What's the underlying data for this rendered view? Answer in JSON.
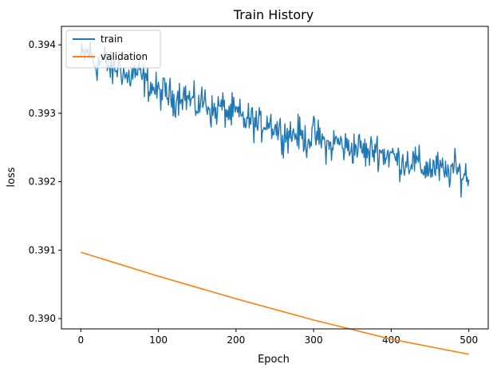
{
  "chart_data": {
    "type": "line",
    "title": "Train History",
    "xlabel": "Epoch",
    "ylabel": "loss",
    "xlim": [
      -25,
      525
    ],
    "ylim": [
      0.38985,
      0.39427
    ],
    "xticks": [
      0,
      100,
      200,
      300,
      400,
      500
    ],
    "xtick_labels": [
      "0",
      "100",
      "200",
      "300",
      "400",
      "500"
    ],
    "yticks": [
      0.39,
      0.391,
      0.392,
      0.393,
      0.394
    ],
    "ytick_labels": [
      "0.390",
      "0.391",
      "0.392",
      "0.393",
      "0.394"
    ],
    "grid": false,
    "legend_position": "upper-left",
    "series": [
      {
        "name": "train",
        "color": "#1f77b4",
        "x": [
          0,
          10,
          20,
          30,
          40,
          50,
          60,
          70,
          80,
          90,
          100,
          110,
          120,
          130,
          140,
          150,
          160,
          170,
          180,
          190,
          200,
          210,
          220,
          230,
          240,
          250,
          260,
          270,
          280,
          290,
          300,
          310,
          320,
          330,
          340,
          350,
          360,
          370,
          380,
          390,
          400,
          410,
          420,
          430,
          440,
          450,
          460,
          470,
          480,
          490,
          500
        ],
        "y": [
          0.3938,
          0.3939,
          0.3937,
          0.3938,
          0.3936,
          0.3937,
          0.3935,
          0.3936,
          0.3935,
          0.3934,
          0.3933,
          0.3933,
          0.3932,
          0.3933,
          0.3932,
          0.3931,
          0.3932,
          0.393,
          0.3931,
          0.393,
          0.393,
          0.3929,
          0.3929,
          0.3928,
          0.3929,
          0.3928,
          0.3927,
          0.3927,
          0.3927,
          0.3926,
          0.3927,
          0.3926,
          0.3925,
          0.3926,
          0.3925,
          0.3925,
          0.3925,
          0.3924,
          0.3925,
          0.3924,
          0.3924,
          0.3923,
          0.3923,
          0.3923,
          0.3922,
          0.3922,
          0.3922,
          0.3921,
          0.3922,
          0.3921,
          0.3921
        ],
        "noise": 0.00025
      },
      {
        "name": "validation",
        "color": "#ff7f0e",
        "x": [
          0,
          100,
          200,
          300,
          400,
          500
        ],
        "y": [
          0.39097,
          0.39062,
          0.39029,
          0.38998,
          0.3897,
          0.38948
        ]
      }
    ]
  }
}
